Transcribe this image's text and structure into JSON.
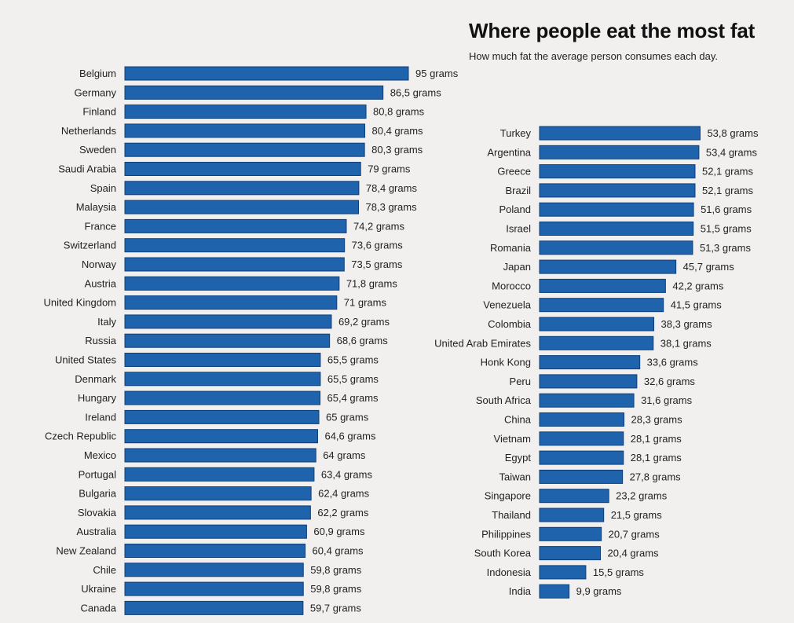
{
  "title": "Where people eat the most fat",
  "subtitle": "How much fat the average person consumes each day.",
  "colors": {
    "bar": "#1f63ad",
    "bar_edge": "#0f3f78",
    "background": "#f1f0ee",
    "text": "#222222"
  },
  "chart_data": [
    {
      "type": "bar",
      "orientation": "horizontal",
      "unit": "grams",
      "categories": [
        "Belgium",
        "Germany",
        "Finland",
        "Netherlands",
        "Sweden",
        "Saudi Arabia",
        "Spain",
        "Malaysia",
        "France",
        "Switzerland",
        "Norway",
        "Austria",
        "United Kingdom",
        "Italy",
        "Russia",
        "United States",
        "Denmark",
        "Hungary",
        "Ireland",
        "Czech Republic",
        "Mexico",
        "Portugal",
        "Bulgaria",
        "Slovakia",
        "Australia",
        "New Zealand",
        "Chile",
        "Ukraine",
        "Canada"
      ],
      "values": [
        95,
        86.5,
        80.8,
        80.4,
        80.3,
        79,
        78.4,
        78.3,
        74.2,
        73.6,
        73.5,
        71.8,
        71,
        69.2,
        68.6,
        65.5,
        65.5,
        65.4,
        65,
        64.6,
        64,
        63.4,
        62.4,
        62.2,
        60.9,
        60.4,
        59.8,
        59.8,
        59.7
      ],
      "value_labels": [
        "95 grams",
        "86,5 grams",
        "80,8 grams",
        "80,4 grams",
        "80,3 grams",
        "79 grams",
        "78,4 grams",
        "78,3 grams",
        "74,2 grams",
        "73,6 grams",
        "73,5 grams",
        "71,8 grams",
        "71 grams",
        "69,2 grams",
        "68,6 grams",
        "65,5 grams",
        "65,5 grams",
        "65,4 grams",
        "65 grams",
        "64,6 grams",
        "64 grams",
        "63,4 grams",
        "62,4 grams",
        "62,2 grams",
        "60,9 grams",
        "60,4 grams",
        "59,8 grams",
        "59,8 grams",
        "59,7 grams"
      ]
    },
    {
      "type": "bar",
      "orientation": "horizontal",
      "unit": "grams",
      "categories": [
        "Turkey",
        "Argentina",
        "Greece",
        "Brazil",
        "Poland",
        "Israel",
        "Romania",
        "Japan",
        "Morocco",
        "Venezuela",
        "Colombia",
        "United Arab Emirates",
        "Honk Kong",
        "Peru",
        "South Africa",
        "China",
        "Vietnam",
        "Egypt",
        "Taiwan",
        "Singapore",
        "Thailand",
        "Philippines",
        "South Korea",
        "Indonesia",
        "India"
      ],
      "values": [
        53.8,
        53.4,
        52.1,
        52.1,
        51.6,
        51.5,
        51.3,
        45.7,
        42.2,
        41.5,
        38.3,
        38.1,
        33.6,
        32.6,
        31.6,
        28.3,
        28.1,
        28.1,
        27.8,
        23.2,
        21.5,
        20.7,
        20.4,
        15.5,
        9.9
      ],
      "value_labels": [
        "53,8 grams",
        "53,4 grams",
        "52,1 grams",
        "52,1 grams",
        "51,6 grams",
        "51,5 grams",
        "51,3 grams",
        "45,7 grams",
        "42,2 grams",
        "41,5 grams",
        "38,3 grams",
        "38,1 grams",
        "33,6 grams",
        "32,6 grams",
        "31,6 grams",
        "28,3 grams",
        "28,1 grams",
        "28,1 grams",
        "27,8 grams",
        "23,2 grams",
        "21,5 grams",
        "20,7 grams",
        "20,4 grams",
        "15,5 grams",
        "9,9 grams"
      ]
    }
  ]
}
